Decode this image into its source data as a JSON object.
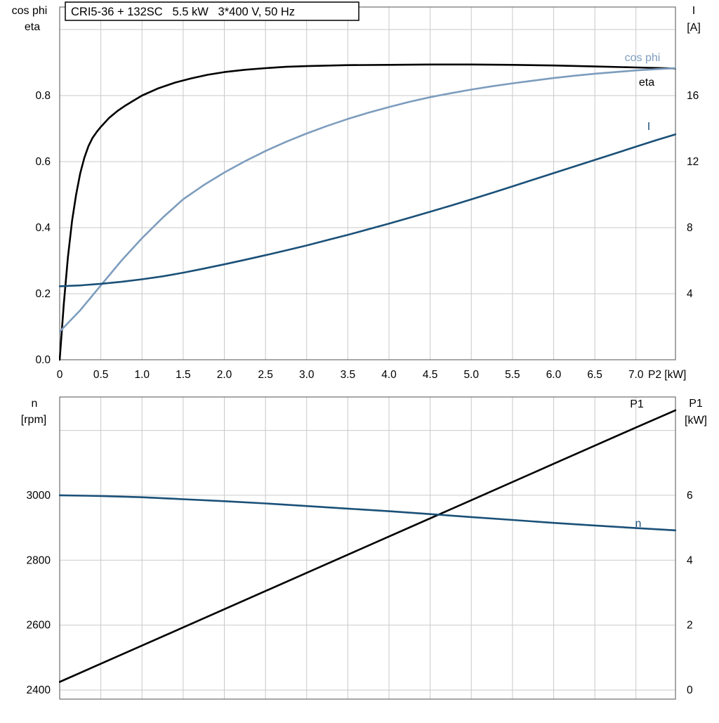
{
  "colors": {
    "text": "#000000",
    "grid": "#c9c9c9",
    "border": "#6e6e6e",
    "eta": "#000000",
    "cos_phi": "#7d9dbe",
    "current": "#1a5078",
    "p1": "#000000",
    "n": "#1a5078",
    "title_box_border": "#000000",
    "title_box_fill": "#ffffff"
  },
  "chart_data": [
    {
      "type": "line",
      "title": "CRI5-36 + 132SC   5.5 kW   3*400 V, 50 Hz",
      "x_axis": {
        "label": "P2 [kW]",
        "min": 0,
        "max": 7.48,
        "tick_values": [
          0,
          0.5,
          1,
          1.5,
          2,
          2.5,
          3,
          3.5,
          4,
          4.5,
          5,
          5.5,
          6,
          6.5,
          7
        ],
        "tick_labels": [
          "0",
          "0.5",
          "1.0",
          "1.5",
          "2.0",
          "2.5",
          "3.0",
          "3.5",
          "4.0",
          "4.5",
          "5.0",
          "5.5",
          "6.0",
          "6.5",
          "7.0"
        ]
      },
      "y_left": {
        "title_lines": [
          "cos phi",
          "eta"
        ],
        "min": 0,
        "max": 1.068,
        "tick_values": [
          0,
          0.2,
          0.4,
          0.6,
          0.8
        ],
        "tick_labels": [
          "0.0",
          "0.2",
          "0.4",
          "0.6",
          "0.8"
        ],
        "grid_values": [
          0.2,
          0.4,
          0.6,
          0.8,
          1.0
        ]
      },
      "y_right": {
        "title_lines": [
          "I",
          "[A]"
        ],
        "min": 0,
        "max": 21.36,
        "tick_values": [
          4,
          8,
          12,
          16
        ],
        "tick_labels": [
          "4",
          "8",
          "12",
          "16"
        ]
      },
      "series": [
        {
          "name": "eta",
          "label": "eta",
          "color_key": "eta",
          "axis": "left",
          "points": [
            [
              0,
              0
            ],
            [
              0.05,
              0.17
            ],
            [
              0.1,
              0.31
            ],
            [
              0.15,
              0.42
            ],
            [
              0.2,
              0.5
            ],
            [
              0.25,
              0.565
            ],
            [
              0.3,
              0.612
            ],
            [
              0.35,
              0.647
            ],
            [
              0.4,
              0.672
            ],
            [
              0.45,
              0.69
            ],
            [
              0.5,
              0.705
            ],
            [
              0.6,
              0.732
            ],
            [
              0.7,
              0.753
            ],
            [
              0.8,
              0.77
            ],
            [
              0.9,
              0.785
            ],
            [
              1.0,
              0.8
            ],
            [
              1.2,
              0.822
            ],
            [
              1.4,
              0.839
            ],
            [
              1.6,
              0.852
            ],
            [
              1.8,
              0.863
            ],
            [
              2.0,
              0.871
            ],
            [
              2.25,
              0.878
            ],
            [
              2.5,
              0.883
            ],
            [
              2.75,
              0.887
            ],
            [
              3.0,
              0.889
            ],
            [
              3.5,
              0.892
            ],
            [
              4.0,
              0.893
            ],
            [
              4.5,
              0.894
            ],
            [
              5.0,
              0.894
            ],
            [
              5.5,
              0.893
            ],
            [
              6.0,
              0.891
            ],
            [
              6.5,
              0.888
            ],
            [
              7.0,
              0.885
            ],
            [
              7.48,
              0.882
            ]
          ]
        },
        {
          "name": "cos phi",
          "label": "cos phi",
          "color_key": "cos_phi",
          "axis": "left",
          "points": [
            [
              0,
              0.085
            ],
            [
              0.25,
              0.15
            ],
            [
              0.5,
              0.225
            ],
            [
              0.75,
              0.3
            ],
            [
              1.0,
              0.368
            ],
            [
              1.25,
              0.43
            ],
            [
              1.5,
              0.486
            ],
            [
              1.75,
              0.529
            ],
            [
              2.0,
              0.567
            ],
            [
              2.25,
              0.601
            ],
            [
              2.5,
              0.632
            ],
            [
              2.75,
              0.66
            ],
            [
              3.0,
              0.685
            ],
            [
              3.25,
              0.708
            ],
            [
              3.5,
              0.729
            ],
            [
              3.75,
              0.748
            ],
            [
              4.0,
              0.765
            ],
            [
              4.25,
              0.781
            ],
            [
              4.5,
              0.795
            ],
            [
              4.75,
              0.807
            ],
            [
              5.0,
              0.818
            ],
            [
              5.25,
              0.828
            ],
            [
              5.5,
              0.837
            ],
            [
              5.75,
              0.845
            ],
            [
              6.0,
              0.853
            ],
            [
              6.25,
              0.86
            ],
            [
              6.5,
              0.866
            ],
            [
              6.75,
              0.871
            ],
            [
              7.0,
              0.876
            ],
            [
              7.25,
              0.88
            ],
            [
              7.48,
              0.883
            ]
          ]
        },
        {
          "name": "I",
          "label": "I",
          "color_key": "current",
          "axis": "right",
          "points": [
            [
              0,
              4.45
            ],
            [
              0.25,
              4.5
            ],
            [
              0.5,
              4.6
            ],
            [
              0.75,
              4.72
            ],
            [
              1.0,
              4.87
            ],
            [
              1.25,
              5.05
            ],
            [
              1.5,
              5.27
            ],
            [
              1.75,
              5.52
            ],
            [
              2.0,
              5.78
            ],
            [
              2.25,
              6.05
            ],
            [
              2.5,
              6.33
            ],
            [
              2.75,
              6.62
            ],
            [
              3.0,
              6.92
            ],
            [
              3.25,
              7.24
            ],
            [
              3.5,
              7.56
            ],
            [
              3.75,
              7.9
            ],
            [
              4.0,
              8.24
            ],
            [
              4.25,
              8.6
            ],
            [
              4.5,
              8.96
            ],
            [
              4.75,
              9.33
            ],
            [
              5.0,
              9.71
            ],
            [
              5.25,
              10.1
            ],
            [
              5.5,
              10.5
            ],
            [
              5.75,
              10.9
            ],
            [
              6.0,
              11.3
            ],
            [
              6.25,
              11.7
            ],
            [
              6.5,
              12.1
            ],
            [
              6.75,
              12.5
            ],
            [
              7.0,
              12.9
            ],
            [
              7.25,
              13.3
            ],
            [
              7.48,
              13.65
            ]
          ]
        }
      ]
    },
    {
      "type": "line",
      "x_axis": {
        "min": 0,
        "max": 7.48,
        "tick_values": [
          0,
          0.5,
          1,
          1.5,
          2,
          2.5,
          3,
          3.5,
          4,
          4.5,
          5,
          5.5,
          6,
          6.5,
          7
        ]
      },
      "y_left": {
        "title_lines": [
          "n",
          "[rpm]"
        ],
        "min": 2372,
        "max": 3303,
        "tick_values": [
          2400,
          2600,
          2800,
          3000
        ],
        "tick_labels": [
          "2400",
          "2600",
          "2800",
          "3000"
        ],
        "grid_values": [
          2400,
          2600,
          2800,
          3000,
          3200
        ]
      },
      "y_right": {
        "title_lines": [
          "P1",
          "[kW]"
        ],
        "min": -0.28,
        "max": 9.03,
        "tick_values": [
          0,
          2,
          4,
          6
        ],
        "tick_labels": [
          "0",
          "2",
          "4",
          "6"
        ]
      },
      "series": [
        {
          "name": "P1",
          "label": "P1",
          "color_key": "p1",
          "axis": "right",
          "points": [
            [
              0,
              0.25
            ],
            [
              1,
              1.37
            ],
            [
              2,
              2.49
            ],
            [
              3,
              3.61
            ],
            [
              4,
              4.73
            ],
            [
              5,
              5.85
            ],
            [
              6,
              6.97
            ],
            [
              7,
              8.09
            ],
            [
              7.48,
              8.62
            ]
          ]
        },
        {
          "name": "n",
          "label": "n",
          "color_key": "n",
          "axis": "left",
          "points": [
            [
              0,
              3000
            ],
            [
              0.5,
              2998
            ],
            [
              1,
              2994
            ],
            [
              1.5,
              2988
            ],
            [
              2,
              2982
            ],
            [
              2.5,
              2975
            ],
            [
              3,
              2967
            ],
            [
              3.5,
              2959
            ],
            [
              4,
              2951
            ],
            [
              4.5,
              2942
            ],
            [
              5,
              2933
            ],
            [
              5.5,
              2924
            ],
            [
              6,
              2915
            ],
            [
              6.5,
              2907
            ],
            [
              7,
              2899
            ],
            [
              7.48,
              2892
            ]
          ]
        }
      ]
    }
  ]
}
